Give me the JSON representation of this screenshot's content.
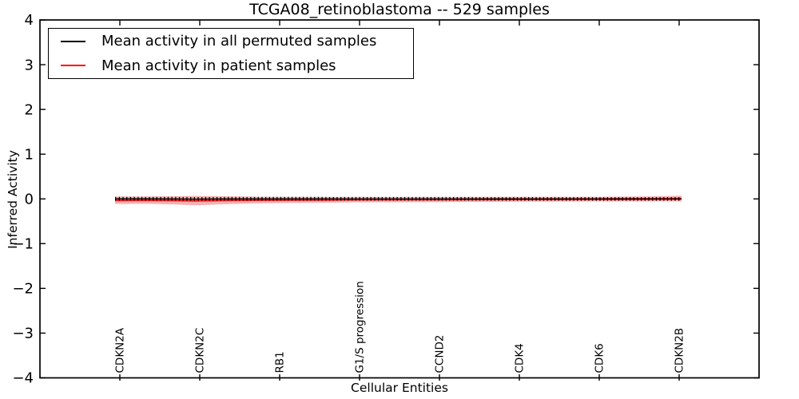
{
  "figure": {
    "title": "TCGA08_retinoblastoma -- 529 samples",
    "xlabel": "Cellular Entities",
    "ylabel": "Inferred Activity"
  },
  "legend": {
    "position": "upper left",
    "entries": [
      {
        "label": "Mean activity in all permuted samples",
        "color": "#000000"
      },
      {
        "label": "Mean activity in patient samples",
        "color": "#ff0000"
      }
    ]
  },
  "chart_data": {
    "type": "line",
    "title": "TCGA08_retinoblastoma -- 529 samples",
    "xlabel": "Cellular Entities",
    "ylabel": "Inferred Activity",
    "ylim": [
      -4,
      4
    ],
    "xlim_category_units": [
      -1,
      8
    ],
    "grid": false,
    "legend_position": "upper left",
    "y_tick_values": [
      4,
      3,
      2,
      1,
      0,
      -1,
      -2,
      -3,
      -4
    ],
    "y_tick_labels": [
      "4",
      "3",
      "2",
      "1",
      "0",
      "−1",
      "−2",
      "−3",
      "−4"
    ],
    "categories": [
      "CDKN2A",
      "CDKN2C",
      "RB1",
      "G1/S progression",
      "CCND2",
      "CDK4",
      "CDK6",
      "CDKN2B"
    ],
    "colors": {
      "permuted_mean": "#000000",
      "patient_mean": "#e02020",
      "band_fill": "rgba(235,60,60,0.40)"
    },
    "series": [
      {
        "name": "Mean activity in all permuted samples",
        "color": "#000000",
        "style": "line-with-tick-markers",
        "x": [
          -0.06,
          0,
          0.35,
          0.7,
          0.95,
          1.3,
          1.8,
          2.5,
          3,
          4,
          5,
          6,
          6.6,
          7.03
        ],
        "values": [
          0.004,
          0.005,
          0.004,
          0.002,
          0.0,
          0.002,
          0.003,
          0.002,
          0.001,
          0.001,
          0.0,
          0.0,
          0.0,
          0.0
        ]
      },
      {
        "name": "Mean activity in patient samples",
        "color": "#ff0000",
        "style": "line",
        "x": [
          -0.06,
          0,
          0.35,
          0.7,
          0.95,
          1.3,
          1.8,
          2.5,
          3,
          4,
          5,
          6,
          6.6,
          7.03
        ],
        "values": [
          -0.03,
          -0.03,
          -0.028,
          -0.033,
          -0.038,
          -0.03,
          -0.024,
          -0.02,
          -0.016,
          -0.012,
          -0.008,
          -0.004,
          0.0,
          0.003
        ]
      }
    ],
    "band": {
      "name": "patient activity spread",
      "x": [
        -0.06,
        0,
        0.35,
        0.7,
        0.95,
        1.3,
        1.8,
        2.5,
        3,
        4,
        5,
        6,
        6.6,
        7.03
      ],
      "upper": [
        0.05,
        0.053,
        0.054,
        0.059,
        0.067,
        0.058,
        0.048,
        0.044,
        0.044,
        0.046,
        0.047,
        0.048,
        0.056,
        0.07
      ],
      "lower": [
        -0.11,
        -0.113,
        -0.11,
        -0.125,
        -0.143,
        -0.118,
        -0.096,
        -0.084,
        -0.076,
        -0.07,
        -0.063,
        -0.056,
        -0.056,
        -0.055
      ]
    }
  }
}
